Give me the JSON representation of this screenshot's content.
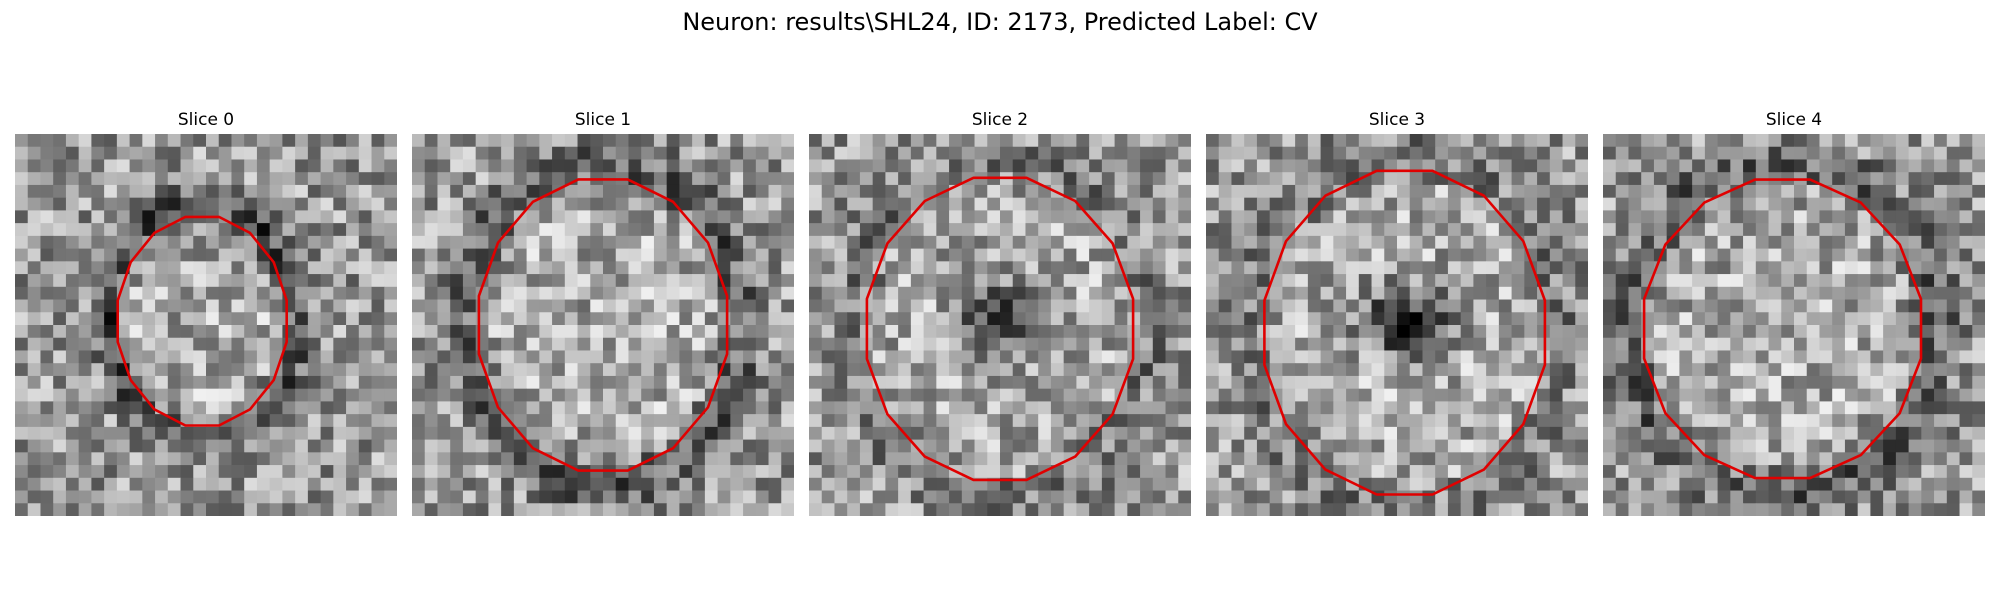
{
  "figure": {
    "title": "Neuron: results\\SHL24, ID: 2173, Predicted Label: CV"
  },
  "contour_color": "#e00000",
  "grid_size": 30,
  "panels": [
    {
      "title": "Slice 0",
      "center": [
        0.49,
        0.49
      ],
      "radius": [
        0.47,
        0.58
      ],
      "ring_darkness": 0.32,
      "center_dark": 0.0,
      "seed": 11
    },
    {
      "title": "Slice 1",
      "center": [
        0.5,
        0.5
      ],
      "radius": [
        0.69,
        0.81
      ],
      "ring_darkness": 0.22,
      "center_dark": 0.0,
      "seed": 23
    },
    {
      "title": "Slice 2",
      "center": [
        0.5,
        0.51
      ],
      "radius": [
        0.74,
        0.84
      ],
      "ring_darkness": 0.12,
      "center_dark": 0.42,
      "seed": 37
    },
    {
      "title": "Slice 3",
      "center": [
        0.52,
        0.52
      ],
      "radius": [
        0.78,
        0.9
      ],
      "ring_darkness": 0.1,
      "center_dark": 0.55,
      "seed": 41
    },
    {
      "title": "Slice 4",
      "center": [
        0.47,
        0.51
      ],
      "radius": [
        0.77,
        0.83
      ],
      "ring_darkness": 0.2,
      "center_dark": 0.0,
      "seed": 53
    }
  ]
}
